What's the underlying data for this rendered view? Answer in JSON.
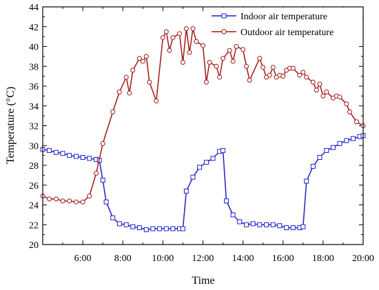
{
  "chart_data": {
    "type": "line",
    "xlabel": "Time",
    "ylabel": "Temperature (°C)",
    "xlim": [
      4.0,
      20.0
    ],
    "ylim": [
      20,
      44
    ],
    "x_ticks": [
      {
        "value": 6,
        "label": "6:00"
      },
      {
        "value": 8,
        "label": "8:00"
      },
      {
        "value": 10,
        "label": "10:00"
      },
      {
        "value": 12,
        "label": "12:00"
      },
      {
        "value": 14,
        "label": "14:00"
      },
      {
        "value": 16,
        "label": "16:00"
      },
      {
        "value": 18,
        "label": "18:00"
      },
      {
        "value": 20,
        "label": "20:00"
      }
    ],
    "y_ticks": [
      20,
      22,
      24,
      26,
      28,
      30,
      32,
      34,
      36,
      38,
      40,
      42,
      44
    ],
    "grid": false,
    "legend_position": "top-right",
    "series": [
      {
        "name": "Indoor air temperature",
        "color": "#1f1fc8",
        "marker": "square",
        "points": [
          [
            4.0,
            29.6
          ],
          [
            4.33,
            29.5
          ],
          [
            4.67,
            29.3
          ],
          [
            5.0,
            29.2
          ],
          [
            5.33,
            29.0
          ],
          [
            5.67,
            28.9
          ],
          [
            6.0,
            28.8
          ],
          [
            6.33,
            28.7
          ],
          [
            6.67,
            28.6
          ],
          [
            6.83,
            28.5
          ],
          [
            7.0,
            26.5
          ],
          [
            7.17,
            24.3
          ],
          [
            7.5,
            22.7
          ],
          [
            7.83,
            22.1
          ],
          [
            8.17,
            22.0
          ],
          [
            8.5,
            21.8
          ],
          [
            8.83,
            21.7
          ],
          [
            9.17,
            21.5
          ],
          [
            9.5,
            21.6
          ],
          [
            9.83,
            21.6
          ],
          [
            10.17,
            21.6
          ],
          [
            10.5,
            21.6
          ],
          [
            10.83,
            21.6
          ],
          [
            11.0,
            21.6
          ],
          [
            11.17,
            25.4
          ],
          [
            11.5,
            26.8
          ],
          [
            11.83,
            27.8
          ],
          [
            12.17,
            28.3
          ],
          [
            12.5,
            28.7
          ],
          [
            12.83,
            29.4
          ],
          [
            13.0,
            29.5
          ],
          [
            13.17,
            24.4
          ],
          [
            13.5,
            23.0
          ],
          [
            13.83,
            22.3
          ],
          [
            14.17,
            22.0
          ],
          [
            14.5,
            22.1
          ],
          [
            14.83,
            22.0
          ],
          [
            15.17,
            22.0
          ],
          [
            15.5,
            22.0
          ],
          [
            15.83,
            21.9
          ],
          [
            16.17,
            21.7
          ],
          [
            16.5,
            21.7
          ],
          [
            16.83,
            21.7
          ],
          [
            17.0,
            21.8
          ],
          [
            17.17,
            26.4
          ],
          [
            17.5,
            27.9
          ],
          [
            17.83,
            28.8
          ],
          [
            18.17,
            29.5
          ],
          [
            18.5,
            29.8
          ],
          [
            18.83,
            30.2
          ],
          [
            19.17,
            30.5
          ],
          [
            19.5,
            30.7
          ],
          [
            19.83,
            30.9
          ],
          [
            20.0,
            31.0
          ]
        ]
      },
      {
        "name": "Outdoor air temperature",
        "color": "#a01616",
        "marker": "circle",
        "points": [
          [
            4.0,
            24.9
          ],
          [
            4.33,
            24.6
          ],
          [
            4.67,
            24.6
          ],
          [
            5.0,
            24.4
          ],
          [
            5.33,
            24.4
          ],
          [
            5.67,
            24.3
          ],
          [
            6.0,
            24.3
          ],
          [
            6.33,
            24.9
          ],
          [
            6.67,
            27.2
          ],
          [
            7.0,
            30.2
          ],
          [
            7.5,
            33.4
          ],
          [
            7.83,
            35.4
          ],
          [
            8.17,
            36.9
          ],
          [
            8.33,
            35.3
          ],
          [
            8.5,
            37.6
          ],
          [
            8.83,
            38.8
          ],
          [
            9.0,
            38.5
          ],
          [
            9.17,
            39.0
          ],
          [
            9.33,
            36.4
          ],
          [
            9.67,
            34.5
          ],
          [
            10.0,
            40.9
          ],
          [
            10.17,
            41.5
          ],
          [
            10.33,
            39.6
          ],
          [
            10.5,
            40.9
          ],
          [
            10.83,
            41.3
          ],
          [
            11.0,
            38.4
          ],
          [
            11.17,
            41.8
          ],
          [
            11.33,
            39.4
          ],
          [
            11.5,
            41.8
          ],
          [
            11.67,
            40.5
          ],
          [
            12.0,
            40.1
          ],
          [
            12.17,
            36.4
          ],
          [
            12.33,
            38.4
          ],
          [
            12.67,
            38.0
          ],
          [
            12.83,
            36.9
          ],
          [
            13.0,
            38.8
          ],
          [
            13.33,
            39.6
          ],
          [
            13.5,
            38.5
          ],
          [
            13.67,
            40.0
          ],
          [
            14.0,
            39.7
          ],
          [
            14.17,
            38.0
          ],
          [
            14.33,
            36.6
          ],
          [
            14.83,
            38.8
          ],
          [
            15.0,
            37.9
          ],
          [
            15.17,
            36.9
          ],
          [
            15.33,
            37.1
          ],
          [
            15.5,
            37.9
          ],
          [
            15.67,
            36.9
          ],
          [
            15.83,
            37.1
          ],
          [
            16.0,
            37.0
          ],
          [
            16.17,
            37.6
          ],
          [
            16.33,
            37.8
          ],
          [
            16.5,
            37.8
          ],
          [
            16.83,
            37.1
          ],
          [
            17.0,
            37.4
          ],
          [
            17.17,
            36.9
          ],
          [
            17.5,
            36.4
          ],
          [
            17.67,
            35.6
          ],
          [
            17.83,
            36.2
          ],
          [
            18.0,
            35.0
          ],
          [
            18.17,
            35.4
          ],
          [
            18.5,
            34.8
          ],
          [
            18.67,
            35.0
          ],
          [
            18.83,
            34.9
          ],
          [
            19.17,
            34.2
          ],
          [
            19.33,
            33.4
          ],
          [
            19.67,
            32.4
          ],
          [
            20.0,
            32.0
          ]
        ]
      }
    ]
  }
}
